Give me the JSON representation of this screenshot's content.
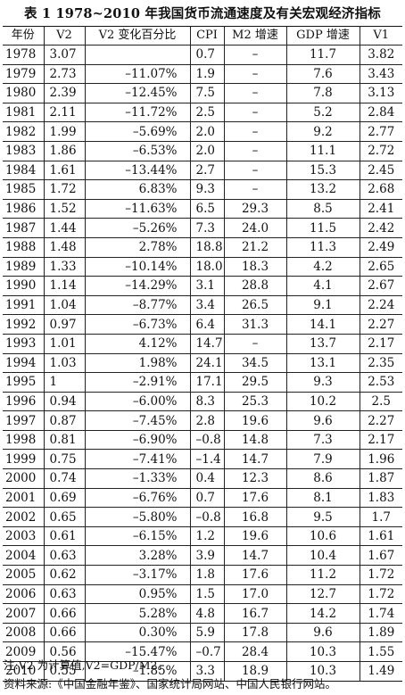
{
  "title": "表 1  1978~2010 年我国货币流通速度及有关宏观经济指标",
  "columns": [
    "年份",
    "V2",
    "V2 变化百分比",
    "CPI",
    "M2 增速",
    "GDP 增速",
    "V1"
  ],
  "rows": [
    [
      "1978",
      "3.07",
      "",
      "0.7",
      "–",
      "11.7",
      "3.82"
    ],
    [
      "1979",
      "2.73",
      "–11.07%",
      "1.9",
      "–",
      "7.6",
      "3.43"
    ],
    [
      "1980",
      "2.39",
      "–12.45%",
      "7.5",
      "–",
      "7.8",
      "3.13"
    ],
    [
      "1981",
      "2.11",
      "–11.72%",
      "2.5",
      "–",
      "5.2",
      "2.84"
    ],
    [
      "1982",
      "1.99",
      "–5.69%",
      "2.0",
      "–",
      "9.2",
      "2.77"
    ],
    [
      "1983",
      "1.86",
      "–6.53%",
      "2.0",
      "–",
      "11.1",
      "2.72"
    ],
    [
      "1984",
      "1.61",
      "–13.44%",
      "2.7",
      "–",
      "15.3",
      "2.45"
    ],
    [
      "1985",
      "1.72",
      "6.83%",
      "9.3",
      "–",
      "13.2",
      "2.68"
    ],
    [
      "1986",
      "1.52",
      "–11.63%",
      "6.5",
      "29.3",
      "8.5",
      "2.41"
    ],
    [
      "1987",
      "1.44",
      "–5.26%",
      "7.3",
      "24.0",
      "11.5",
      "2.42"
    ],
    [
      "1988",
      "1.48",
      "2.78%",
      "18.8",
      "21.2",
      "11.3",
      "2.49"
    ],
    [
      "1989",
      "1.33",
      "–10.14%",
      "18.0",
      "18.3",
      "4.2",
      "2.65"
    ],
    [
      "1990",
      "1.14",
      "–14.29%",
      "3.1",
      "28.8",
      "4.1",
      "2.67"
    ],
    [
      "1991",
      "1.04",
      "–8.77%",
      "3.4",
      "26.5",
      "9.1",
      "2.24"
    ],
    [
      "1992",
      "0.97",
      "–6.73%",
      "6.4",
      "31.3",
      "14.1",
      "2.27"
    ],
    [
      "1993",
      "1.01",
      "4.12%",
      "14.7",
      "–",
      "13.7",
      "2.17"
    ],
    [
      "1994",
      "1.03",
      "1.98%",
      "24.1",
      "34.5",
      "13.1",
      "2.35"
    ],
    [
      "1995",
      "1",
      "–2.91%",
      "17.1",
      "29.5",
      "9.3",
      "2.53"
    ],
    [
      "1996",
      "0.94",
      "–6.00%",
      "8.3",
      "25.3",
      "10.2",
      "2.5"
    ],
    [
      "1997",
      "0.87",
      "–7.45%",
      "2.8",
      "19.6",
      "9.6",
      "2.27"
    ],
    [
      "1998",
      "0.81",
      "–6.90%",
      "–0.8",
      "14.8",
      "7.3",
      "2.17"
    ],
    [
      "1999",
      "0.75",
      "–7.41%",
      "–1.4",
      "14.7",
      "7.9",
      "1.96"
    ],
    [
      "2000",
      "0.74",
      "–1.33%",
      "0.4",
      "12.3",
      "8.6",
      "1.87"
    ],
    [
      "2001",
      "0.69",
      "–6.76%",
      "0.7",
      "17.6",
      "8.1",
      "1.83"
    ],
    [
      "2002",
      "0.65",
      "–5.80%",
      "–0.8",
      "16.8",
      "9.5",
      "1.7"
    ],
    [
      "2003",
      "0.61",
      "–6.15%",
      "1.2",
      "19.6",
      "10.6",
      "1.61"
    ],
    [
      "2004",
      "0.63",
      "3.28%",
      "3.9",
      "14.7",
      "10.4",
      "1.67"
    ],
    [
      "2005",
      "0.62",
      "–3.17%",
      "1.8",
      "17.6",
      "11.2",
      "1.72"
    ],
    [
      "2006",
      "0.63",
      "0.95%",
      "1.5",
      "17.0",
      "12.7",
      "1.72"
    ],
    [
      "2007",
      "0.66",
      "5.28%",
      "4.8",
      "16.7",
      "14.2",
      "1.74"
    ],
    [
      "2008",
      "0.66",
      "0.30%",
      "5.9",
      "17.8",
      "9.6",
      "1.89"
    ],
    [
      "2009",
      "0.56",
      "–15.47%",
      "–0.7",
      "28.4",
      "10.3",
      "1.55"
    ],
    [
      "2010",
      "0.55",
      "–1.85%",
      "3.3",
      "18.9",
      "10.3",
      "1.49"
    ]
  ],
  "notes": {
    "note": "注:V2 为计算值,V2=GDP/M2。",
    "source": "资料来源:《中国金融年鉴》、国家统计局网站、中国人民银行网站。"
  }
}
